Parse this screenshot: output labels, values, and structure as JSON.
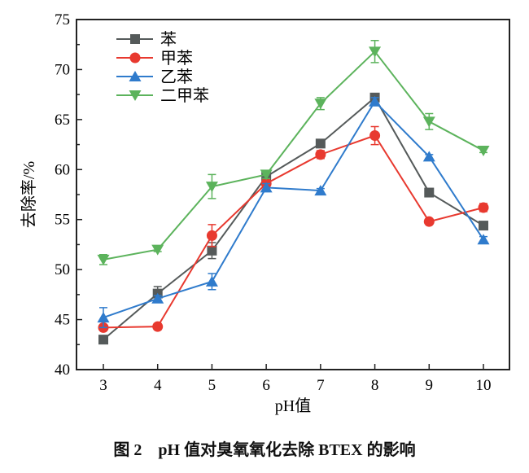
{
  "chart_data": {
    "type": "line",
    "xlabel": "pH值",
    "ylabel": "去除率/%",
    "xlim": [
      2.5,
      10.5
    ],
    "ylim": [
      40,
      75
    ],
    "x": [
      3,
      4,
      5,
      6,
      7,
      8,
      9,
      10
    ],
    "xticks": [
      "3",
      "4",
      "5",
      "6",
      "7",
      "8",
      "9",
      "10"
    ],
    "yticks": [
      "40",
      "45",
      "50",
      "55",
      "60",
      "65",
      "70",
      "75"
    ],
    "grid": false,
    "legend_position": "top-left",
    "series": [
      {
        "name": "苯",
        "color": "#555a5a",
        "marker": "square",
        "values": [
          43.0,
          47.6,
          51.9,
          59.3,
          62.6,
          67.2,
          57.7,
          54.4
        ],
        "errors": [
          0.2,
          0.7,
          0.8,
          0.4,
          0.3,
          0.3,
          0.2,
          0.2
        ]
      },
      {
        "name": "甲苯",
        "color": "#e8392f",
        "marker": "circle",
        "values": [
          44.2,
          44.3,
          53.4,
          58.6,
          61.5,
          63.4,
          54.8,
          56.2
        ],
        "errors": [
          0.2,
          0.3,
          1.1,
          0.4,
          0.4,
          0.9,
          0.2,
          0.4
        ]
      },
      {
        "name": "乙苯",
        "color": "#2f7bcc",
        "marker": "triangle-up",
        "values": [
          45.2,
          47.1,
          48.8,
          58.2,
          57.9,
          66.8,
          61.3,
          53.0
        ],
        "errors": [
          1.0,
          0.3,
          0.8,
          0.4,
          0.2,
          0.4,
          0.2,
          0.3
        ]
      },
      {
        "name": "二甲苯",
        "color": "#5cb35c",
        "marker": "triangle-down",
        "values": [
          51.0,
          52.0,
          58.3,
          59.5,
          66.6,
          71.8,
          64.8,
          61.9
        ],
        "errors": [
          0.5,
          0.2,
          1.2,
          0.4,
          0.6,
          1.1,
          0.8,
          0.2
        ]
      }
    ]
  },
  "caption": {
    "figure": "图 2",
    "text": "pH 值对臭氧氧化去除 BTEX 的影响"
  }
}
